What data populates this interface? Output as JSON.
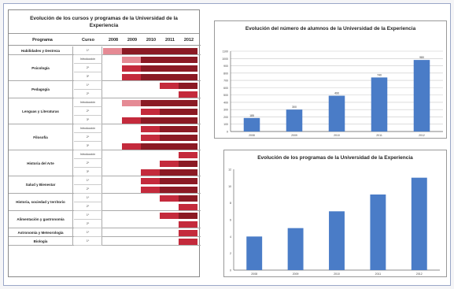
{
  "table": {
    "title": "Evolución de los cursos y programas de la Universidad de la Experiencia",
    "headers": {
      "program": "Programa",
      "course": "Curso",
      "years": [
        "2008",
        "2009",
        "2010",
        "2011",
        "2012"
      ]
    },
    "programs": [
      {
        "name": "Habilidades y Destreza",
        "subs": [
          {
            "label": "1º",
            "level": 5
          }
        ]
      },
      {
        "name": "Psicología",
        "subs": [
          {
            "label": "Introducción",
            "level": 4
          },
          {
            "label": "2º",
            "level": 4
          },
          {
            "label": "3º",
            "level": 4
          }
        ]
      },
      {
        "name": "Pedagogía",
        "subs": [
          {
            "label": "1º",
            "level": 2
          },
          {
            "label": "2º",
            "level": 1
          }
        ]
      },
      {
        "name": "Lenguas y Literaturas",
        "subs": [
          {
            "label": "Introducción",
            "level": 4
          },
          {
            "label": "2º",
            "level": 3
          },
          {
            "label": "3º",
            "level": 4
          }
        ]
      },
      {
        "name": "Filosofía",
        "subs": [
          {
            "label": "Introducción",
            "level": 3
          },
          {
            "label": "2º",
            "level": 3
          },
          {
            "label": "3º",
            "level": 4
          }
        ]
      },
      {
        "name": "Historia del Arte",
        "subs": [
          {
            "label": "Introducción",
            "level": 1
          },
          {
            "label": "2º",
            "level": 2
          },
          {
            "label": "3º",
            "level": 3
          }
        ]
      },
      {
        "name": "Salud y Bienestar",
        "subs": [
          {
            "label": "1º",
            "level": 3
          },
          {
            "label": "2º",
            "level": 3
          }
        ]
      },
      {
        "name": "Historia, sociedad y territorio",
        "subs": [
          {
            "label": "1º",
            "level": 2
          },
          {
            "label": "2º",
            "level": 1
          }
        ]
      },
      {
        "name": "Alimentación y gastronomía",
        "subs": [
          {
            "label": "1º",
            "level": 2
          },
          {
            "label": "2º",
            "level": 1
          }
        ]
      },
      {
        "name": "Astronomía y Meteorología",
        "subs": [
          {
            "label": "1º",
            "level": 1
          }
        ]
      },
      {
        "name": "Biología",
        "subs": [
          {
            "label": "1º",
            "level": 1
          }
        ]
      }
    ],
    "colors": {
      "dark": "#8b1a24",
      "mid": "#c42a3c",
      "light": "#e58a94"
    }
  },
  "chart_data": [
    {
      "type": "bar",
      "title": "Evolución del número de alumnos de la Universidad de la Experiencia",
      "categories": [
        "2008",
        "2009",
        "2010",
        "2011",
        "2012"
      ],
      "values": [
        185,
        300,
        490,
        740,
        980
      ],
      "value_labels": [
        "185",
        "300",
        "490",
        "740",
        "980"
      ],
      "ylim": [
        0,
        1100
      ],
      "yticks": [
        0,
        100,
        200,
        300,
        400,
        500,
        600,
        700,
        800,
        900,
        1000,
        1100
      ],
      "grid": true,
      "color": "#4a7cc7"
    },
    {
      "type": "bar",
      "title": "Evolución de los programas de la Universidad de la Experiencia",
      "categories": [
        "2008",
        "2009",
        "2010",
        "2011",
        "2012"
      ],
      "values": [
        4,
        5,
        7,
        9,
        11
      ],
      "ylim": [
        0,
        12
      ],
      "yticks": [
        0,
        2,
        4,
        6,
        8,
        10,
        12
      ],
      "grid": false,
      "color": "#4a7cc7"
    }
  ]
}
